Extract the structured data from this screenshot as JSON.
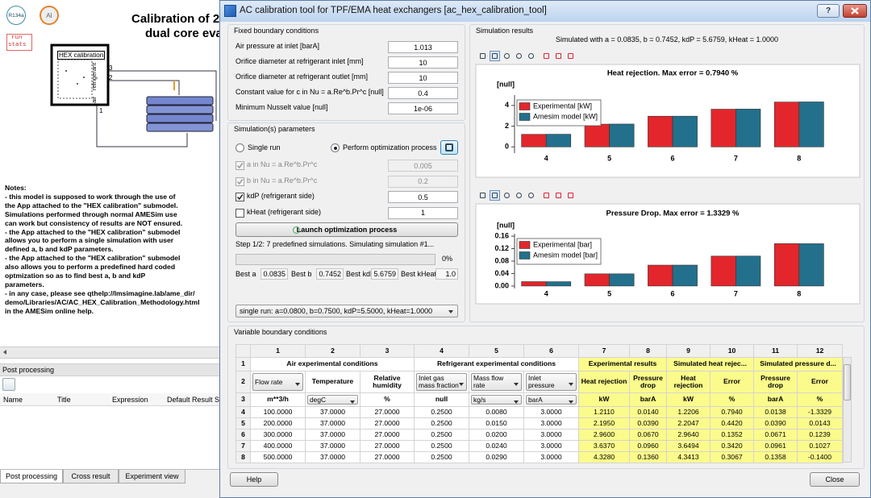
{
  "app": {
    "badges": [
      "R134a",
      "AI"
    ],
    "run_stats": [
      "run",
      "stats"
    ],
    "title_lines": [
      "Calibration of 2",
      "dual core eva"
    ],
    "component": {
      "label": "HEX calibration",
      "side_labels": [
        "refrigerant",
        "air"
      ],
      "ports": [
        "3",
        "2",
        "1"
      ]
    },
    "notes": [
      "Notes:",
      "- this model is supposed to work through the use of",
      "the App attached to the \"HEX calibration\" submodel.",
      "Simulations performed through normal AMESim use",
      "can work but consistency of results are NOT ensured.",
      "- the App attached to the \"HEX calibration\" submodel",
      "allows you to perform a single simulation with user",
      "defined a, b and kdP parameters.",
      "- the App attached to the \"HEX calibration\" submodel",
      "also allows you to perform a predefined hard coded",
      "optmization so as to find best a, b and kdP",
      "parameters.",
      "- in any case, please see qthelp://lmsimagine.lab/ame_dir/",
      "demo/Libraries/AC/AC_HEX_Calibration_Methodology.html",
      "in the AMESim online help."
    ],
    "post_processing": {
      "title": "Post processing",
      "columns": [
        "Name",
        "Title",
        "Expression",
        "Default Result S"
      ]
    },
    "tabs": [
      "Post processing",
      "Cross result",
      "Experiment view"
    ]
  },
  "dialog": {
    "title": "AC calibration tool for TPF/EMA heat exchangers [ac_hex_calibration_tool]",
    "help_icon": "?",
    "fixed": {
      "title": "Fixed boundary conditions",
      "rows": [
        {
          "label": "Air pressure at inlet [barA]",
          "value": "1.013"
        },
        {
          "label": "Orifice diameter at refrigerant inlet [mm]",
          "value": "10"
        },
        {
          "label": "Orifice diameter at refrigerant outlet [mm]",
          "value": "10"
        },
        {
          "label": "Constant value for c in Nu = a.Re^b.Pr^c [null]",
          "value": "0.4"
        },
        {
          "label": "Minimum Nusselt value [null]",
          "value": "1e-06"
        }
      ]
    },
    "sim_params": {
      "title": "Simulation(s) parameters",
      "single_run": "Single run",
      "optimize": "Perform optimization process",
      "params": [
        {
          "label": "a in Nu = a.Re^b.Pr^c",
          "value": "0.005",
          "checked": true,
          "enabled": false
        },
        {
          "label": "b in Nu = a.Re^b.Pr^c",
          "value": "0.2",
          "checked": true,
          "enabled": false
        },
        {
          "label": "kdP (refrigerant side)",
          "value": "0.5",
          "checked": true,
          "enabled": true
        },
        {
          "label": "kHeat (refrigerant side)",
          "value": "1",
          "checked": false,
          "enabled": true
        }
      ],
      "launch": "Launch optimization process",
      "status": "Step 1/2: 7 predefined simulations. Simulating simulation #1...",
      "progress": 0,
      "progress_label": "0%",
      "best": [
        {
          "label": "Best a",
          "value": "0.0835"
        },
        {
          "label": "Best b",
          "value": "0.7452"
        },
        {
          "label": "Best kdP",
          "value": "5.6759"
        },
        {
          "label": "Best kHeat",
          "value": "1.0"
        }
      ],
      "run_select": "single run: a=0.0800, b=0.7500, kdP=5.5000, kHeat=1.0000"
    },
    "results": {
      "title": "Simulation results",
      "subtitle": "Simulated with a = 0.0835, b = 0.7452, kdP = 5.6759, kHeat = 1.0000"
    },
    "variable": {
      "title": "Variable boundary conditions",
      "table": {
        "col_numbers": [
          1,
          2,
          3,
          4,
          5,
          6,
          7,
          8,
          9,
          10,
          11,
          12
        ],
        "row_numbers": [
          1,
          2,
          3,
          4,
          5,
          6,
          7,
          8
        ],
        "groups": [
          "Air experimental conditions",
          null,
          null,
          "Refrigerant experimental conditions",
          null,
          null,
          "Experimental results",
          null,
          "Simulated heat rejec...",
          null,
          "Simulated pressure d...",
          null
        ],
        "header": [
          "Flow rate",
          "Temperature",
          "Relative humidity",
          "Inlet gas mass fraction",
          "Mass flow rate",
          "Inlet pressure",
          "Heat rejection",
          "Pressure drop",
          "Heat rejection",
          "Error",
          "Pressure drop",
          "Error"
        ],
        "units": [
          "m**3/h",
          "degC",
          "%",
          "null",
          "kg/s",
          "barA",
          "kW",
          "barA",
          "kW",
          "%",
          "barA",
          "%"
        ],
        "rows": [
          [
            "100.0000",
            "37.0000",
            "27.0000",
            "0.2500",
            "0.0080",
            "3.0000",
            "1.2110",
            "0.0140",
            "1.2206",
            "0.7940",
            "0.0138",
            "-1.3329"
          ],
          [
            "200.0000",
            "37.0000",
            "27.0000",
            "0.2500",
            "0.0150",
            "3.0000",
            "2.1950",
            "0.0390",
            "2.2047",
            "0.4420",
            "0.0390",
            "0.0143"
          ],
          [
            "300.0000",
            "37.0000",
            "27.0000",
            "0.2500",
            "0.0200",
            "3.0000",
            "2.9600",
            "0.0670",
            "2.9640",
            "0.1352",
            "0.0671",
            "0.1239"
          ],
          [
            "400.0000",
            "37.0000",
            "27.0000",
            "0.2500",
            "0.0240",
            "3.0000",
            "3.6370",
            "0.0960",
            "3.6494",
            "0.3420",
            "0.0961",
            "0.1027"
          ],
          [
            "500.0000",
            "37.0000",
            "27.0000",
            "0.2500",
            "0.0290",
            "3.0000",
            "4.3280",
            "0.1360",
            "4.3413",
            "0.3067",
            "0.1358",
            "-0.1400"
          ]
        ]
      }
    },
    "buttons": [
      "Help",
      "Close"
    ]
  },
  "chart_data": [
    {
      "type": "bar",
      "title": "Heat rejection. Max error = 0.7940 %",
      "ylabel": "[null]",
      "categories": [
        "4",
        "5",
        "6",
        "7",
        "8"
      ],
      "series": [
        {
          "name": "Experimental [kW]",
          "color": "#e3262b",
          "values": [
            1.211,
            2.195,
            2.96,
            3.637,
            4.328
          ]
        },
        {
          "name": "Amesim model [kW]",
          "color": "#22708c",
          "values": [
            1.2206,
            2.2047,
            2.964,
            3.6494,
            4.3413
          ]
        }
      ],
      "ylim": [
        -0.6,
        5
      ],
      "yticks": [
        0,
        2,
        4
      ],
      "legend": "upper-left"
    },
    {
      "type": "bar",
      "title": "Pressure Drop. Max error = 1.3329 %",
      "ylabel": "[null]",
      "categories": [
        "4",
        "5",
        "6",
        "7",
        "8"
      ],
      "series": [
        {
          "name": "Experimental [bar]",
          "color": "#e3262b",
          "values": [
            0.014,
            0.039,
            0.067,
            0.096,
            0.136
          ]
        },
        {
          "name": "Amesim model [bar]",
          "color": "#22708c",
          "values": [
            0.0138,
            0.039,
            0.0671,
            0.0961,
            0.1358
          ]
        }
      ],
      "ylim": [
        -0.008,
        0.168
      ],
      "yticks": [
        {
          "value": 0,
          "label": "0.00"
        },
        0.04,
        0.08,
        0.12,
        0.16
      ],
      "legend": "upper-left"
    }
  ]
}
